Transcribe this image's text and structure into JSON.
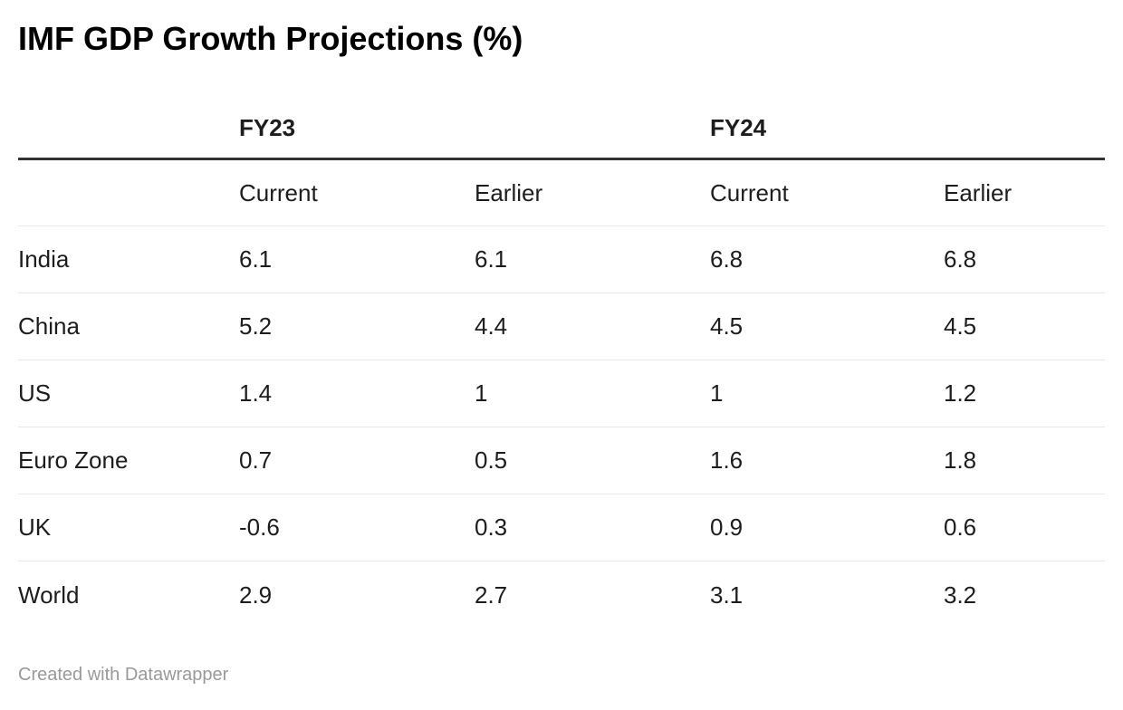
{
  "chart_data": {
    "type": "table",
    "title": "IMF GDP Growth Projections (%)",
    "group_headers": [
      "FY23",
      "FY24"
    ],
    "sub_headers": [
      "Current",
      "Earlier",
      "Current",
      "Earlier"
    ],
    "columns": [
      "",
      "FY23 Current",
      "FY23 Earlier",
      "FY24 Current",
      "FY24 Earlier"
    ],
    "rows": [
      {
        "label": "India",
        "values": [
          "6.1",
          "6.1",
          "6.8",
          "6.8"
        ]
      },
      {
        "label": "China",
        "values": [
          "5.2",
          "4.4",
          "4.5",
          "4.5"
        ]
      },
      {
        "label": "US",
        "values": [
          "1.4",
          "1",
          "1",
          "1.2"
        ]
      },
      {
        "label": "Euro Zone",
        "values": [
          "0.7",
          "0.5",
          "1.6",
          "1.8"
        ]
      },
      {
        "label": "UK",
        "values": [
          "-0.6",
          "0.3",
          "0.9",
          "0.6"
        ]
      },
      {
        "label": "World",
        "values": [
          "2.9",
          "2.7",
          "3.1",
          "3.2"
        ]
      }
    ],
    "attribution": "Created with Datawrapper",
    "layout": {
      "grid": "horizontal-row-separators",
      "header_rule_color": "#333333",
      "row_rule_color": "#e8e8e8",
      "text_color": "#1d1d1d",
      "attribution_color": "#999999",
      "background": "#ffffff"
    }
  }
}
